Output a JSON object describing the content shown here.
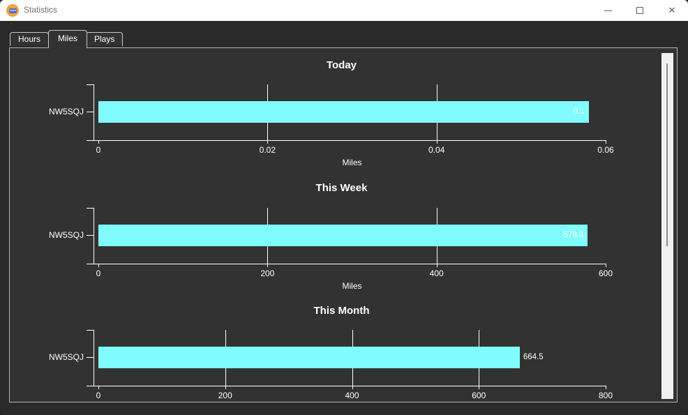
{
  "window": {
    "title": "Statistics"
  },
  "icons": {
    "minimize": "minus-line",
    "maximize": "square-outline",
    "close": "✕"
  },
  "tabs": [
    {
      "label": "Hours",
      "selected": false
    },
    {
      "label": "Miles",
      "selected": true
    },
    {
      "label": "Plays",
      "selected": false
    }
  ],
  "colors": {
    "bar": "#80fcfe",
    "axis": "#ffffff",
    "panel_background": "#323232",
    "window_background": "#2a2a2a",
    "titlebar_background": "#ffffff"
  },
  "chart_data": [
    {
      "type": "bar",
      "orientation": "horizontal",
      "title": "Today",
      "categories": [
        "NW5SQJ"
      ],
      "values": [
        0.058
      ],
      "value_labels": [
        "0.1"
      ],
      "xlabel": "Miles",
      "xlim": [
        0,
        0.06
      ],
      "xticks": [
        0,
        0.02,
        0.04,
        0.06
      ],
      "xtick_labels": [
        "0",
        "0.02",
        "0.04",
        "0.06"
      ],
      "grid": true,
      "legend": "none"
    },
    {
      "type": "bar",
      "orientation": "horizontal",
      "title": "This Week",
      "categories": [
        "NW5SQJ"
      ],
      "values": [
        578.8
      ],
      "value_labels": [
        "578.8"
      ],
      "xlabel": "Miles",
      "xlim": [
        0,
        600
      ],
      "xticks": [
        0,
        200,
        400,
        600
      ],
      "xtick_labels": [
        "0",
        "200",
        "400",
        "600"
      ],
      "grid": true,
      "legend": "none"
    },
    {
      "type": "bar",
      "orientation": "horizontal",
      "title": "This Month",
      "categories": [
        "NW5SQJ"
      ],
      "values": [
        664.5
      ],
      "value_labels": [
        "664.5"
      ],
      "xlabel": "",
      "xlim": [
        0,
        800
      ],
      "xticks": [
        0,
        200,
        400,
        600,
        800
      ],
      "xtick_labels": [
        "0",
        "200",
        "400",
        "600",
        "800"
      ],
      "grid": true,
      "legend": "none"
    }
  ]
}
